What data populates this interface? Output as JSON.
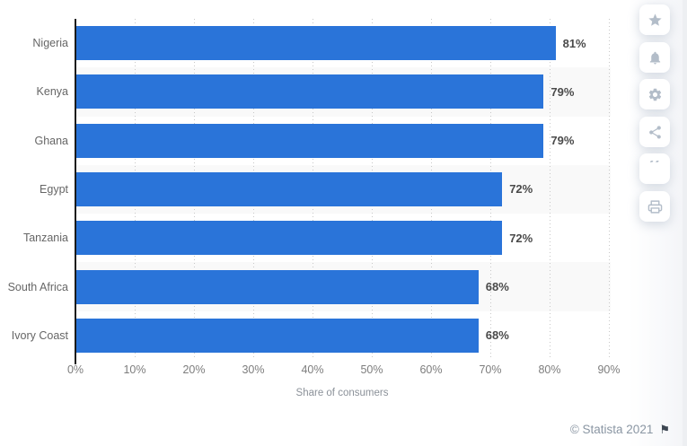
{
  "chart_data": {
    "type": "bar",
    "orientation": "horizontal",
    "categories": [
      "Nigeria",
      "Kenya",
      "Ghana",
      "Egypt",
      "Tanzania",
      "South Africa",
      "Ivory Coast"
    ],
    "values": [
      81,
      79,
      79,
      72,
      72,
      68,
      68
    ],
    "value_labels": [
      "81%",
      "79%",
      "79%",
      "72%",
      "72%",
      "68%",
      "68%"
    ],
    "xlabel": "Share of consumers",
    "x_ticks": [
      "0%",
      "10%",
      "20%",
      "30%",
      "40%",
      "50%",
      "60%",
      "70%",
      "80%",
      "90%"
    ],
    "xlim": [
      0,
      90
    ],
    "grid": "vertical dotted gridlines every 10%",
    "legend": "none",
    "bar_color": "#2a74d9",
    "row_stripe_color": "#f9f9f9"
  },
  "footer": {
    "copyright": "© Statista 2021",
    "flag_icon": "flag-icon"
  },
  "sidebar": {
    "buttons": [
      {
        "name": "favorite-button",
        "icon": "star-icon"
      },
      {
        "name": "notifications-button",
        "icon": "bell-icon"
      },
      {
        "name": "settings-button",
        "icon": "gear-icon"
      },
      {
        "name": "share-button",
        "icon": "share-icon"
      },
      {
        "name": "cite-button",
        "icon": "quote-icon"
      },
      {
        "name": "print-button",
        "icon": "print-icon"
      }
    ]
  }
}
